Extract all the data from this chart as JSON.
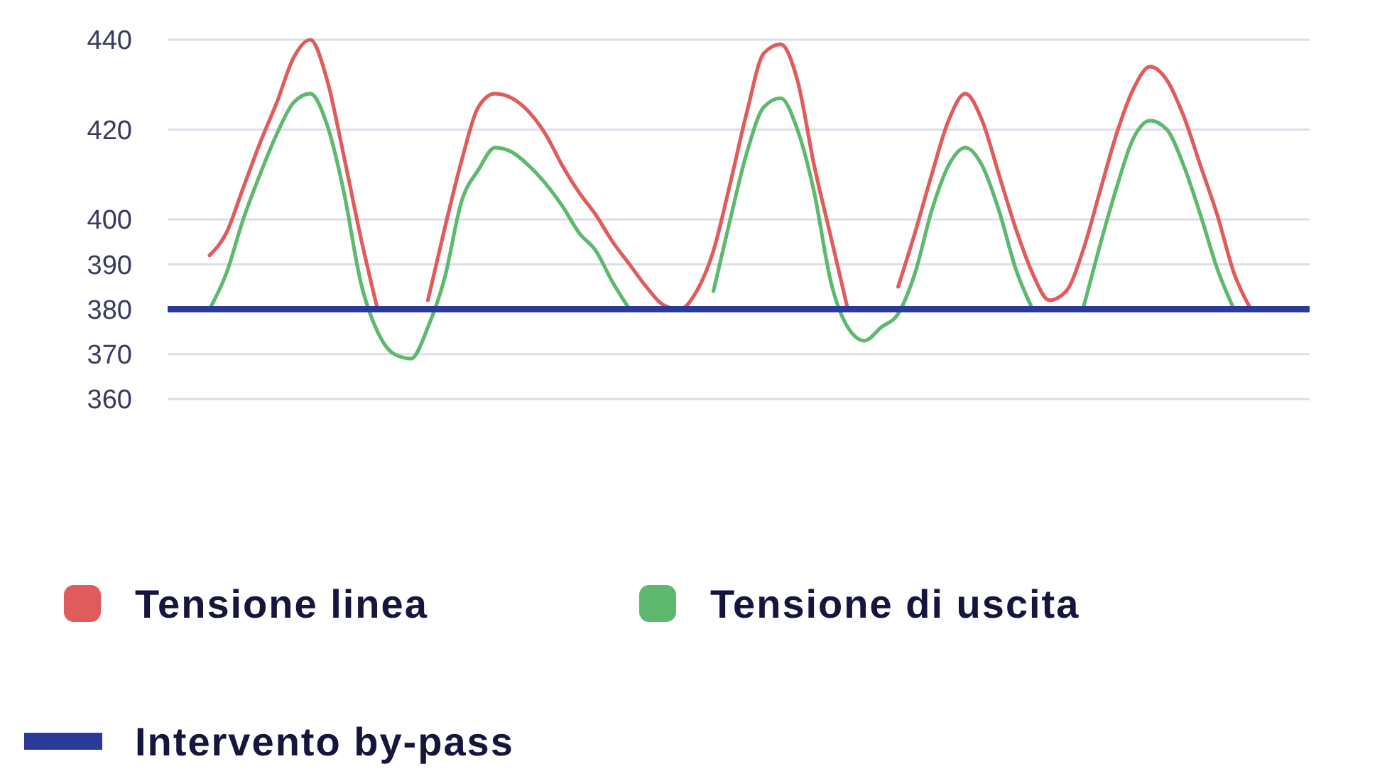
{
  "chart_data": {
    "type": "line",
    "categories": [
      null,
      null,
      null,
      null,
      null,
      null,
      null,
      null,
      null,
      null,
      null,
      null,
      null,
      null,
      null,
      null,
      null,
      null,
      null,
      null,
      null,
      null,
      null,
      null,
      null,
      null,
      null,
      null,
      null,
      null,
      null,
      null,
      null,
      null,
      null,
      null,
      null,
      null,
      null,
      null,
      null,
      null,
      null,
      null,
      null,
      null,
      null,
      null,
      null,
      null,
      null,
      null,
      null,
      null,
      null,
      null,
      null,
      null,
      null,
      null,
      null,
      null,
      null,
      null,
      null,
      null,
      null,
      null
    ],
    "series": [
      {
        "name": "Tensione linea",
        "color": "#e05c5c",
        "values": [
          null,
          null,
          392,
          397,
          407,
          417,
          426,
          436,
          440,
          431,
          414,
          396,
          380,
          null,
          null,
          382,
          398,
          413,
          425,
          428,
          427,
          424,
          419,
          412,
          406,
          401,
          395,
          390,
          385,
          381,
          380,
          384,
          393,
          408,
          424,
          437,
          439,
          431,
          412,
          396,
          380,
          null,
          null,
          385,
          397,
          410,
          422,
          428,
          422,
          410,
          398,
          388,
          382,
          384,
          393,
          406,
          419,
          429,
          434,
          431,
          423,
          412,
          401,
          388,
          380,
          null,
          null,
          null
        ]
      },
      {
        "name": "Tensione di uscita",
        "color": "#5eb96f",
        "values": [
          null,
          null,
          380,
          388,
          400,
          410,
          419,
          426,
          428,
          421,
          406,
          386,
          375,
          370,
          369,
          376,
          387,
          404,
          411,
          416,
          415,
          412,
          408,
          403,
          397,
          393,
          386,
          380,
          null,
          null,
          null,
          null,
          384,
          400,
          415,
          425,
          427,
          420,
          406,
          386,
          376,
          373,
          376,
          379,
          388,
          402,
          412,
          416,
          412,
          402,
          389,
          380,
          null,
          null,
          380,
          394,
          407,
          418,
          422,
          420,
          412,
          401,
          389,
          380,
          null,
          null,
          null,
          null
        ]
      }
    ],
    "ylim": [
      360,
      440
    ],
    "yticks": [
      360,
      370,
      380,
      390,
      400,
      420,
      440
    ],
    "grid": "y",
    "legend": "bottom",
    "ref_lines": [
      {
        "axis": "y",
        "value": 380,
        "label": "Intervento by-pass",
        "color": "#2b3a9a"
      }
    ]
  }
}
